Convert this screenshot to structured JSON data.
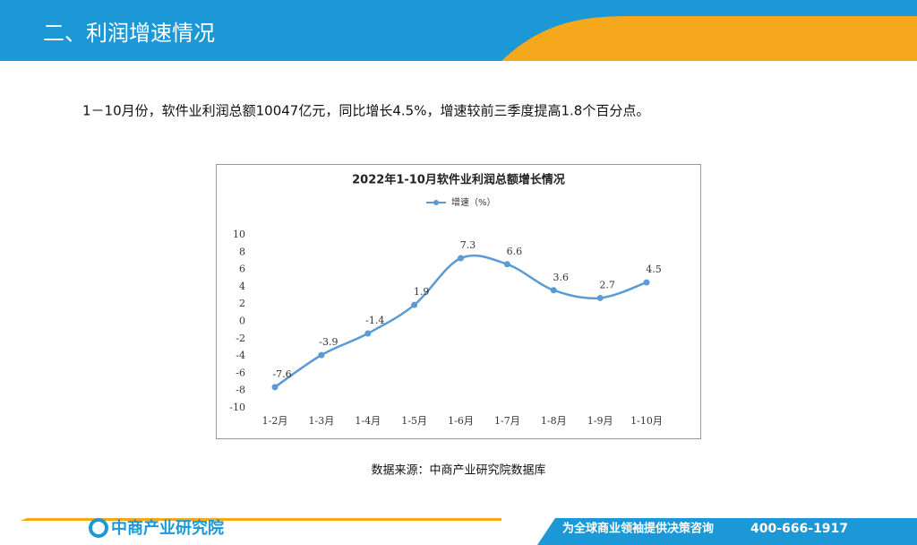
{
  "header": {
    "title": "二、利润增速情况"
  },
  "paragraph": "1－10月份，软件业利润总额10047亿元，同比增长4.5%，增速较前三季度提高1.8个百分点。",
  "chart_data": {
    "type": "line",
    "title": "2022年1-10月软件业利润总额增长情况",
    "categories": [
      "1-2月",
      "1-3月",
      "1-4月",
      "1-5月",
      "1-6月",
      "1-7月",
      "1-8月",
      "1-9月",
      "1-10月"
    ],
    "series": [
      {
        "name": "增速（%）",
        "color": "#5b9bd5",
        "values": [
          -7.6,
          -3.9,
          -1.4,
          1.9,
          7.3,
          6.6,
          3.6,
          2.7,
          4.5
        ]
      }
    ],
    "ylim": [
      -10,
      10
    ],
    "yticks": [
      -10,
      -8,
      -6,
      -4,
      -2,
      0,
      2,
      4,
      6,
      8,
      10
    ],
    "grid": false,
    "legend": "top"
  },
  "source": "数据来源：中商产业研究院数据库",
  "footer": {
    "logo": "中商产业研究院",
    "tagline": "为全球商业领袖提供决策咨询",
    "phone": "400-666-1917"
  }
}
